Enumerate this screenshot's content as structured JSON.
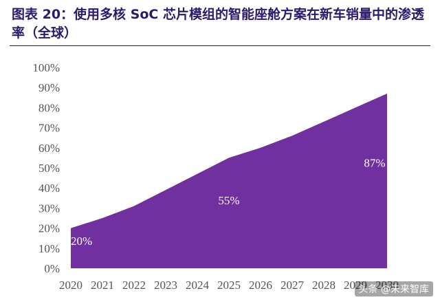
{
  "figure": {
    "title": "图表 20：使用多核 SoC 芯片模组的智能座舱方案在新车销量中的渗透率（全球）"
  },
  "watermark": "头条 @未来智库",
  "chart_data": {
    "type": "area",
    "title": "",
    "xlabel": "",
    "ylabel": "",
    "x": [
      "2020",
      "2021",
      "2022",
      "2023",
      "2024",
      "2025",
      "2026",
      "2027",
      "2028",
      "2029",
      "2030"
    ],
    "yticks": [
      "0%",
      "10%",
      "20%",
      "30%",
      "40%",
      "50%",
      "60%",
      "70%",
      "80%",
      "90%",
      "100%"
    ],
    "ylim": [
      0,
      100
    ],
    "grid": false,
    "legend": "none",
    "series": [
      {
        "values": [
          20,
          25,
          31,
          39,
          47,
          55,
          60,
          66,
          73,
          80,
          87
        ],
        "color": "#7030a0"
      }
    ],
    "data_labels": [
      {
        "index": 0,
        "text": "20%"
      },
      {
        "index": 5,
        "text": "55%"
      },
      {
        "index": 10,
        "text": "87%"
      }
    ]
  }
}
